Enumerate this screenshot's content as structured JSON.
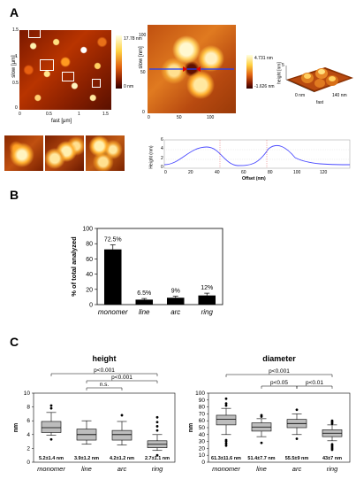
{
  "panels": {
    "a": "A",
    "b": "B",
    "c": "C"
  },
  "panel_a": {
    "main": {
      "ylabel": "slow [μm]",
      "xlabel": "fast [μm]",
      "yticks": [
        "1.5",
        "1",
        "0.5",
        "0"
      ],
      "xticks": [
        "0",
        "0.5",
        "1",
        "1.5"
      ],
      "colorbar_top": "17.78 nm",
      "colorbar_bottom": "0 nm"
    },
    "zoom": {
      "ylabel": "slow [nm]",
      "yticks": [
        "100",
        "50",
        "0"
      ],
      "xticks": [
        "0",
        "50",
        "100"
      ],
      "colorbar_top": "4.731 nm",
      "colorbar_bottom": "-1.626 nm"
    },
    "three_d": {
      "axis_fast": "fast",
      "axis_z": "height [nm]",
      "tick_z": "5",
      "tick_start": "0 nm",
      "tick_end": "140 nm"
    },
    "profile": {
      "ylabel": "Height (nm)",
      "xlabel": "Offset (nm)",
      "yticks": [
        "6",
        "4",
        "2",
        "0"
      ],
      "xticks": [
        "0",
        "20",
        "40",
        "60",
        "80",
        "100",
        "120"
      ]
    }
  },
  "chart_data": [
    {
      "type": "bar",
      "ylabel": "% of total analyzed",
      "categories": [
        "monomer",
        "line",
        "arc",
        "ring"
      ],
      "values": [
        72.5,
        6.5,
        9,
        12
      ],
      "errors": [
        6,
        1.5,
        2,
        3
      ],
      "value_labels": [
        "72.5%",
        "6.5%",
        "9%",
        "12%"
      ],
      "ylim": [
        0,
        100
      ],
      "yticks": [
        "0",
        "20",
        "40",
        "60",
        "80",
        "100"
      ],
      "color": "#000000"
    },
    {
      "type": "box",
      "title": "height",
      "ylabel": "nm",
      "ylim": [
        0,
        10
      ],
      "yticks": [
        "0",
        "2",
        "4",
        "6",
        "8",
        "10"
      ],
      "categories": [
        "monomer",
        "line",
        "arc",
        "ring"
      ],
      "boxes": [
        {
          "q1": 4.3,
          "median": 5.0,
          "q3": 5.9,
          "low": 3.9,
          "high": 7.2,
          "outliers": [
            8.2,
            7.8,
            3.3
          ]
        },
        {
          "q1": 3.2,
          "median": 4.0,
          "q3": 4.8,
          "low": 2.6,
          "high": 6.0,
          "outliers": []
        },
        {
          "q1": 3.2,
          "median": 4.0,
          "q3": 4.6,
          "low": 2.5,
          "high": 5.9,
          "outliers": [
            6.8
          ]
        },
        {
          "q1": 2.1,
          "median": 2.6,
          "q3": 3.1,
          "low": 1.7,
          "high": 4.0,
          "outliers": [
            6.5,
            5.8,
            5.2,
            4.6,
            1.0
          ]
        }
      ],
      "value_labels": [
        "5.2±1.4 nm",
        "3.9±1.2 nm",
        "4.2±1.2 nm",
        "2.7±1.1 nm"
      ],
      "significance": [
        {
          "from": 0,
          "to": 3,
          "label": "p<0.001"
        },
        {
          "from": 1,
          "to": 3,
          "label": "p<0.001"
        },
        {
          "from": 1,
          "to": 2,
          "label": "n.s."
        }
      ]
    },
    {
      "type": "box",
      "title": "diameter",
      "ylabel": "nm",
      "ylim": [
        0,
        100
      ],
      "yticks": [
        "0",
        "10",
        "20",
        "30",
        "40",
        "50",
        "60",
        "70",
        "80",
        "90",
        "100"
      ],
      "categories": [
        "monomer",
        "line",
        "arc",
        "ring"
      ],
      "boxes": [
        {
          "q1": 54,
          "median": 62,
          "q3": 68,
          "low": 40,
          "high": 78,
          "outliers": [
            92,
            85,
            82,
            32,
            30,
            27,
            24
          ]
        },
        {
          "q1": 45,
          "median": 51,
          "q3": 57,
          "low": 37,
          "high": 63,
          "outliers": [
            68,
            66,
            28
          ]
        },
        {
          "q1": 50,
          "median": 56,
          "q3": 62,
          "low": 40,
          "high": 70,
          "outliers": [
            76,
            34
          ]
        },
        {
          "q1": 37,
          "median": 42,
          "q3": 47,
          "low": 31,
          "high": 54,
          "outliers": [
            60,
            58,
            56,
            26,
            24,
            22,
            20,
            18
          ]
        }
      ],
      "value_labels": [
        "61.3±11.6 nm",
        "51.4±7.7 nm",
        "55.5±9 nm",
        "43±7 nm"
      ],
      "significance": [
        {
          "from": 0,
          "to": 3,
          "label": "p<0.001"
        },
        {
          "from": 1,
          "to": 2,
          "label": "p<0.05"
        },
        {
          "from": 2,
          "to": 3,
          "label": "p<0.01"
        }
      ]
    }
  ]
}
